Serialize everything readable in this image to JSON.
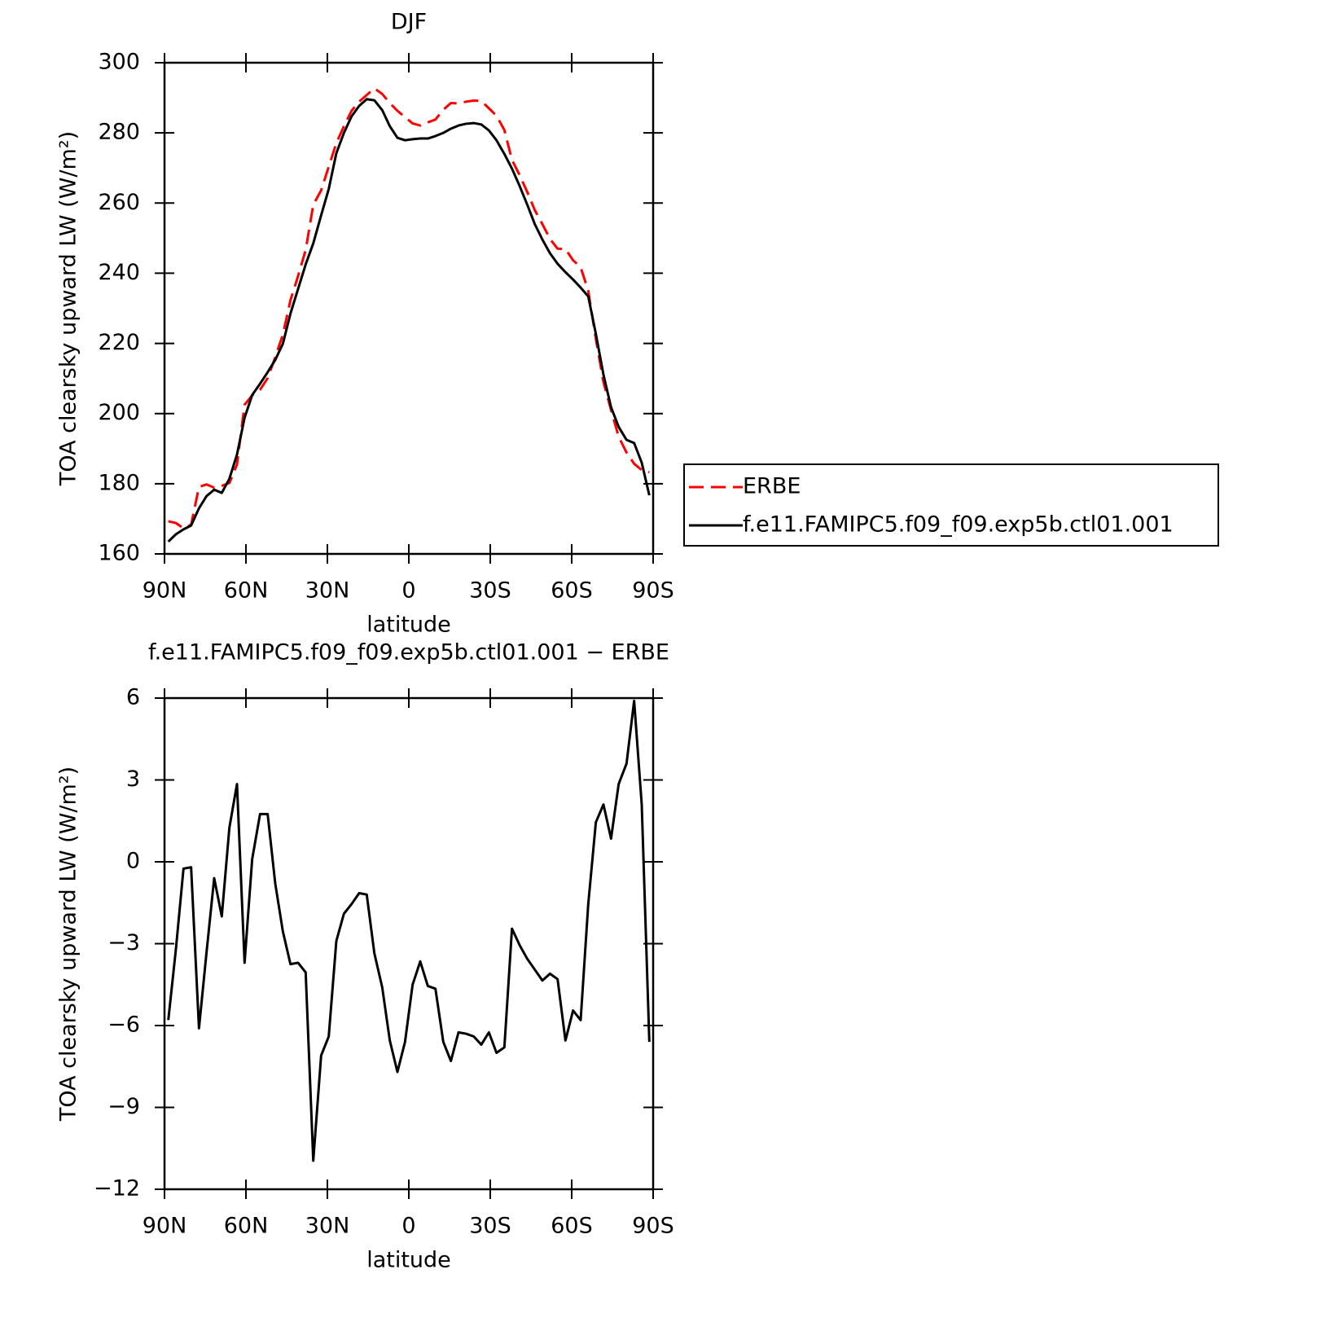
{
  "chart_data": [
    {
      "type": "line",
      "title": "DJF",
      "x_label": "latitude",
      "y_label": "TOA clearsky upward LW (W/m²)",
      "x": [
        88.6,
        85.8,
        83.0,
        80.2,
        77.3,
        74.5,
        71.7,
        68.9,
        66.1,
        63.3,
        60.5,
        57.7,
        54.8,
        52.0,
        49.2,
        46.4,
        43.6,
        40.8,
        38.0,
        35.2,
        32.3,
        29.5,
        26.7,
        23.9,
        21.1,
        18.3,
        15.5,
        12.7,
        9.8,
        7.0,
        4.2,
        1.4,
        -1.4,
        -4.2,
        -7.0,
        -9.8,
        -12.7,
        -15.5,
        -18.3,
        -21.1,
        -23.9,
        -26.7,
        -29.5,
        -32.3,
        -35.2,
        -38.0,
        -40.8,
        -43.6,
        -46.4,
        -49.2,
        -52.0,
        -54.8,
        -57.7,
        -60.5,
        -63.3,
        -66.1,
        -68.9,
        -71.7,
        -74.5,
        -77.3,
        -80.2,
        -83.0,
        -85.8,
        -88.6
      ],
      "xlim": [
        90,
        -90
      ],
      "xticks": [
        {
          "value": 90,
          "label": "90N"
        },
        {
          "value": 60,
          "label": "60N"
        },
        {
          "value": 30,
          "label": "30N"
        },
        0,
        {
          "value": -30,
          "label": "30S"
        },
        {
          "value": -60,
          "label": "60S"
        },
        {
          "value": -90,
          "label": "90S"
        }
      ],
      "ylim": [
        160,
        300
      ],
      "yticks": [
        160,
        180,
        200,
        220,
        240,
        260,
        280,
        300
      ],
      "legend": "right",
      "series": [
        {
          "name": "ERBE",
          "color": "#ff0000",
          "dashed": true,
          "values": [
            169.3,
            168.8,
            167.3,
            168.3,
            179.1,
            179.8,
            178.9,
            179.4,
            180.2,
            185.5,
            202.5,
            205.2,
            206.8,
            210.1,
            216.1,
            222.5,
            232.3,
            239.2,
            246.6,
            259.5,
            263.6,
            270.4,
            277.1,
            281.9,
            286.3,
            288.9,
            290.8,
            292.7,
            291.1,
            288.5,
            286.3,
            284.5,
            282.7,
            282.1,
            283.0,
            283.8,
            286.6,
            288.5,
            288.4,
            288.9,
            289.2,
            289.1,
            287.0,
            284.9,
            280.8,
            272.3,
            268.0,
            263.2,
            258.0,
            254.0,
            249.8,
            247.0,
            246.9,
            243.7,
            241.7,
            235.0,
            221.3,
            209.0,
            201.0,
            193.4,
            188.9,
            185.7,
            183.9,
            183.3
          ]
        },
        {
          "name": "f.e11.FAMIPC5.f09_f09.exp5b.ctl01.001",
          "color": "#000000",
          "dashed": false,
          "values": [
            163.5,
            165.6,
            167.0,
            168.1,
            173.0,
            176.5,
            178.3,
            177.4,
            181.4,
            188.3,
            198.8,
            205.3,
            208.5,
            211.8,
            215.3,
            219.9,
            228.5,
            235.5,
            242.5,
            248.5,
            256.5,
            264.0,
            274.2,
            280.0,
            284.7,
            287.7,
            289.6,
            289.3,
            286.5,
            281.9,
            278.6,
            277.9,
            278.2,
            278.4,
            278.4,
            279.1,
            280.0,
            281.2,
            282.1,
            282.6,
            282.8,
            282.4,
            280.7,
            277.9,
            274.0,
            269.8,
            264.9,
            259.6,
            254.0,
            249.6,
            245.7,
            242.7,
            240.3,
            238.2,
            235.9,
            233.4,
            222.7,
            211.1,
            201.8,
            196.2,
            192.5,
            191.6,
            186.0,
            176.7
          ]
        }
      ]
    },
    {
      "type": "line",
      "title": "f.e11.FAMIPC5.f09_f09.exp5b.ctl01.001 − ERBE",
      "x_label": "latitude",
      "y_label": "TOA clearsky upward LW (W/m²)",
      "x": [
        88.6,
        85.8,
        83.0,
        80.2,
        77.3,
        74.5,
        71.7,
        68.9,
        66.1,
        63.3,
        60.5,
        57.7,
        54.8,
        52.0,
        49.2,
        46.4,
        43.6,
        40.8,
        38.0,
        35.2,
        32.3,
        29.5,
        26.7,
        23.9,
        21.1,
        18.3,
        15.5,
        12.7,
        9.8,
        7.0,
        4.2,
        1.4,
        -1.4,
        -4.2,
        -7.0,
        -9.8,
        -12.7,
        -15.5,
        -18.3,
        -21.1,
        -23.9,
        -26.7,
        -29.5,
        -32.3,
        -35.2,
        -38.0,
        -40.8,
        -43.6,
        -46.4,
        -49.2,
        -52.0,
        -54.8,
        -57.7,
        -60.5,
        -63.3,
        -66.1,
        -68.9,
        -71.7,
        -74.5,
        -77.3,
        -80.2,
        -83.0,
        -85.8,
        -88.6
      ],
      "xlim": [
        90,
        -90
      ],
      "xticks": [
        {
          "value": 90,
          "label": "90N"
        },
        {
          "value": 60,
          "label": "60N"
        },
        {
          "value": 30,
          "label": "30N"
        },
        0,
        {
          "value": -30,
          "label": "30S"
        },
        {
          "value": -60,
          "label": "60S"
        },
        {
          "value": -90,
          "label": "90S"
        }
      ],
      "ylim": [
        -12,
        6
      ],
      "yticks": [
        {
          "value": -12,
          "label": "−12"
        },
        {
          "value": -9,
          "label": "−9"
        },
        {
          "value": -6,
          "label": "−6"
        },
        {
          "value": -3,
          "label": "−3"
        },
        0,
        3,
        6
      ],
      "series": [
        {
          "color": "#000000",
          "dashed": false,
          "values": [
            -5.8,
            -3.2,
            -0.25,
            -0.2,
            -6.1,
            -3.3,
            -0.6,
            -2.0,
            1.25,
            2.85,
            -3.7,
            0.1,
            1.75,
            1.75,
            -0.8,
            -2.55,
            -3.75,
            -3.7,
            -4.05,
            -10.95,
            -7.1,
            -6.4,
            -2.9,
            -1.9,
            -1.55,
            -1.15,
            -1.2,
            -3.35,
            -4.6,
            -6.55,
            -7.7,
            -6.6,
            -4.5,
            -3.65,
            -4.55,
            -4.65,
            -6.6,
            -7.3,
            -6.25,
            -6.3,
            -6.4,
            -6.7,
            -6.25,
            -7.0,
            -6.8,
            -2.45,
            -3.05,
            -3.55,
            -3.95,
            -4.35,
            -4.1,
            -4.3,
            -6.55,
            -5.45,
            -5.8,
            -1.55,
            1.45,
            2.1,
            0.85,
            2.85,
            3.6,
            5.9,
            2.1,
            -6.6
          ]
        }
      ]
    }
  ]
}
